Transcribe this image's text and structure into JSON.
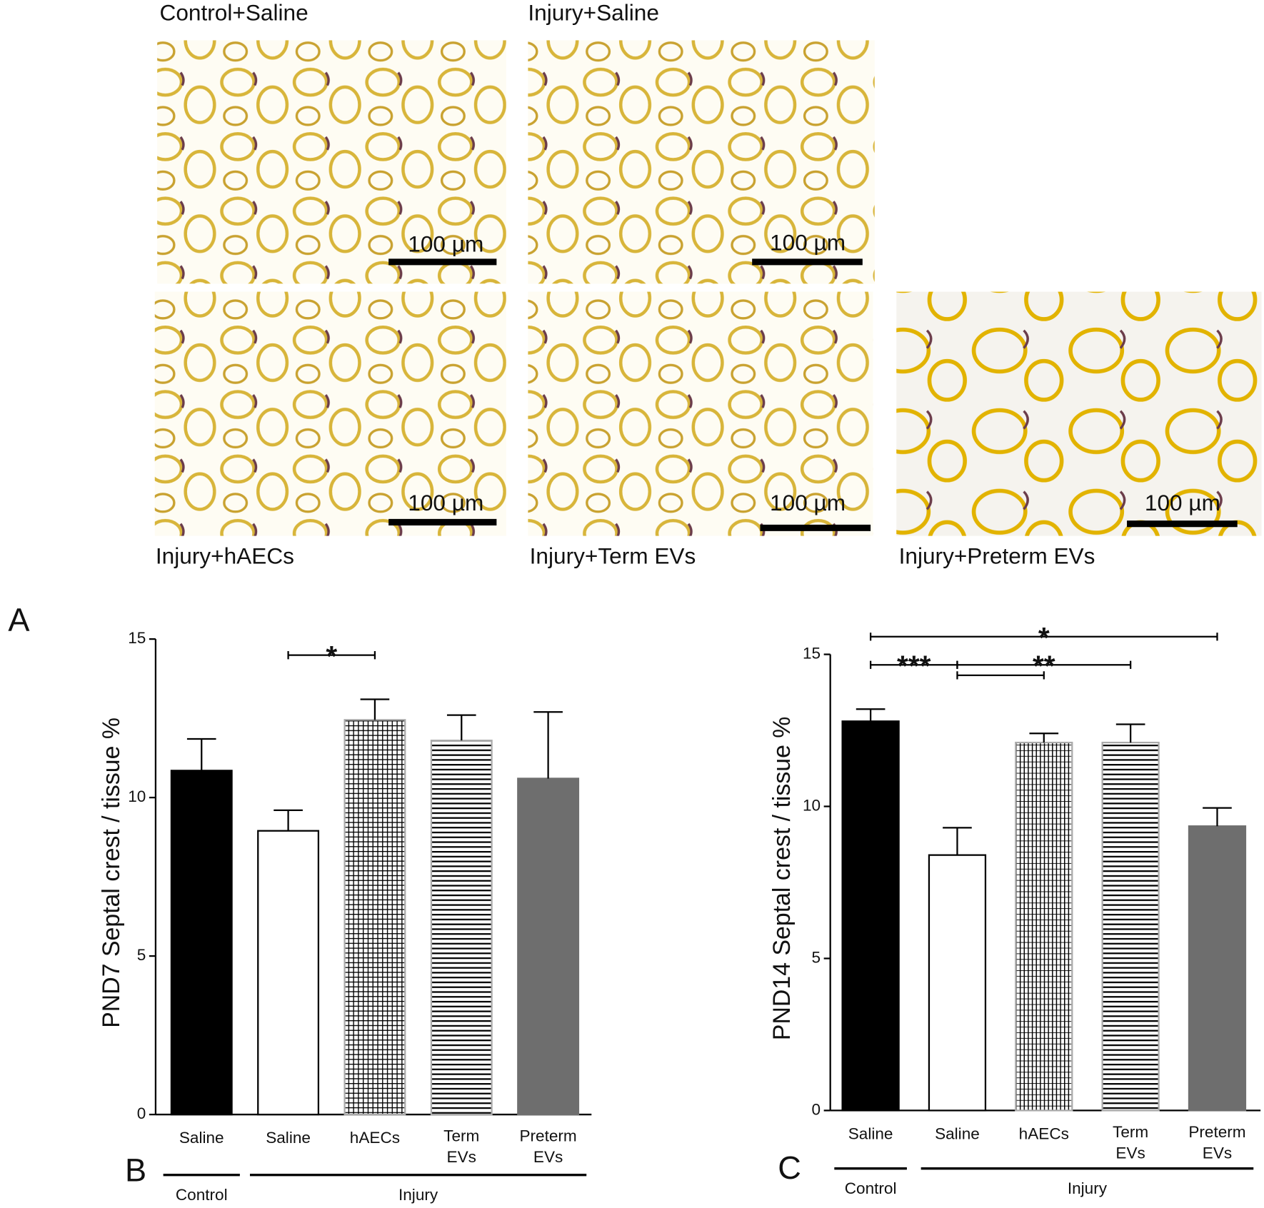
{
  "figure": {
    "panel_letter": "A",
    "micrographs": [
      {
        "label": "Control+Saline",
        "scale_bar": "100 µm"
      },
      {
        "label": "Injury+Saline",
        "scale_bar": "100 µm"
      },
      {
        "label": "Injury+hAECs",
        "scale_bar": "100 µm"
      },
      {
        "label": "Injury+Term EVs",
        "scale_bar": "100 µm"
      },
      {
        "label": "Injury+Preterm EVs",
        "scale_bar": "100 µm"
      }
    ]
  },
  "chart_data": [
    {
      "type": "bar",
      "panel_label": "B",
      "ylabel": "PND7 Septal crest  / tissue %",
      "categories": [
        "Saline",
        "Saline",
        "hAECs",
        "Term EVs",
        "Preterm EVs"
      ],
      "values": [
        10.85,
        8.95,
        12.45,
        11.8,
        10.6
      ],
      "errors": [
        1.0,
        0.65,
        0.65,
        0.8,
        2.1
      ],
      "colors": [
        "#000000",
        "#ffffff",
        "#ffffff",
        "#ffffff",
        "#6e6e6e"
      ],
      "patterns": [
        "solid",
        "solid",
        "grid",
        "hstripes",
        "solid"
      ],
      "groups": [
        {
          "name": "Control",
          "from": 0,
          "to": 0
        },
        {
          "name": "Injury",
          "from": 1,
          "to": 4
        }
      ],
      "annotations": [
        {
          "text": "*",
          "from": 1,
          "to": 2
        }
      ],
      "ylim": [
        0,
        15
      ],
      "yticks": [
        0,
        5,
        10,
        15
      ]
    },
    {
      "type": "bar",
      "panel_label": "C",
      "ylabel": "PND14 Septal crest  / tissue %",
      "categories": [
        "Saline",
        "Saline",
        "hAECs",
        "Term EVs",
        "Preterm EVs"
      ],
      "values": [
        12.8,
        8.4,
        12.1,
        12.1,
        9.35
      ],
      "errors": [
        0.4,
        0.9,
        0.3,
        0.6,
        0.6
      ],
      "colors": [
        "#000000",
        "#ffffff",
        "#ffffff",
        "#ffffff",
        "#6e6e6e"
      ],
      "patterns": [
        "solid",
        "solid",
        "vgrid",
        "hstripes",
        "solid"
      ],
      "groups": [
        {
          "name": "Control",
          "from": 0,
          "to": 0
        },
        {
          "name": "Injury",
          "from": 1,
          "to": 4
        }
      ],
      "annotations": [
        {
          "text": "*",
          "from": 0,
          "to": 4
        },
        {
          "text": "***",
          "from": 0,
          "to": 1
        },
        {
          "text": "**",
          "from": 1,
          "to": 3
        },
        {
          "from": 1,
          "to": 2
        }
      ],
      "ylim": [
        0,
        15
      ],
      "yticks": [
        0,
        5,
        10,
        15
      ]
    }
  ]
}
